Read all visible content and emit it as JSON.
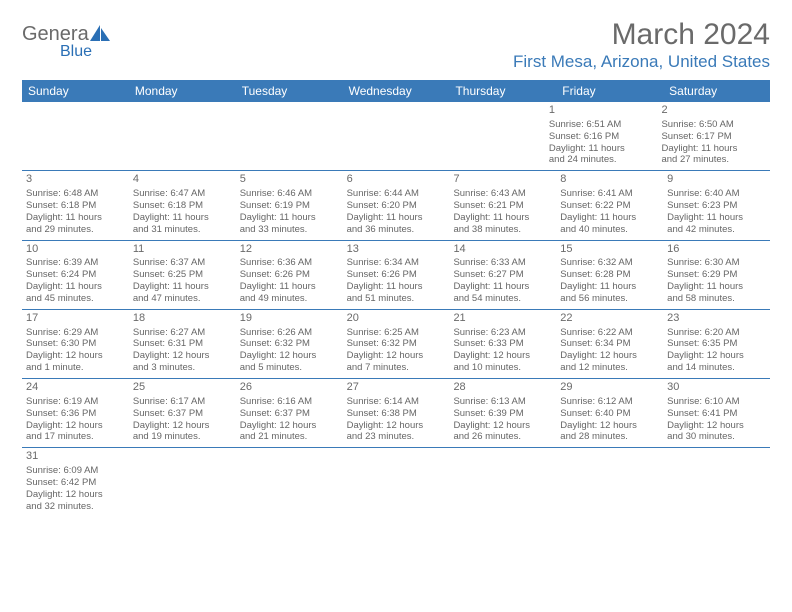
{
  "brand": {
    "name_gray": "Genera",
    "name_blue": "Blue"
  },
  "title": "March 2024",
  "location": "First Mesa, Arizona, United States",
  "colors": {
    "header_bg": "#3a7ab8",
    "header_text": "#ffffff",
    "text": "#666666",
    "title_text": "#6a6a6a",
    "location_text": "#3a7ab8",
    "divider": "#3a7ab8",
    "background": "#ffffff"
  },
  "weekdays": [
    "Sunday",
    "Monday",
    "Tuesday",
    "Wednesday",
    "Thursday",
    "Friday",
    "Saturday"
  ],
  "weeks": [
    [
      null,
      null,
      null,
      null,
      null,
      {
        "n": "1",
        "sr": "Sunrise: 6:51 AM",
        "ss": "Sunset: 6:16 PM",
        "d1": "Daylight: 11 hours",
        "d2": "and 24 minutes."
      },
      {
        "n": "2",
        "sr": "Sunrise: 6:50 AM",
        "ss": "Sunset: 6:17 PM",
        "d1": "Daylight: 11 hours",
        "d2": "and 27 minutes."
      }
    ],
    [
      {
        "n": "3",
        "sr": "Sunrise: 6:48 AM",
        "ss": "Sunset: 6:18 PM",
        "d1": "Daylight: 11 hours",
        "d2": "and 29 minutes."
      },
      {
        "n": "4",
        "sr": "Sunrise: 6:47 AM",
        "ss": "Sunset: 6:18 PM",
        "d1": "Daylight: 11 hours",
        "d2": "and 31 minutes."
      },
      {
        "n": "5",
        "sr": "Sunrise: 6:46 AM",
        "ss": "Sunset: 6:19 PM",
        "d1": "Daylight: 11 hours",
        "d2": "and 33 minutes."
      },
      {
        "n": "6",
        "sr": "Sunrise: 6:44 AM",
        "ss": "Sunset: 6:20 PM",
        "d1": "Daylight: 11 hours",
        "d2": "and 36 minutes."
      },
      {
        "n": "7",
        "sr": "Sunrise: 6:43 AM",
        "ss": "Sunset: 6:21 PM",
        "d1": "Daylight: 11 hours",
        "d2": "and 38 minutes."
      },
      {
        "n": "8",
        "sr": "Sunrise: 6:41 AM",
        "ss": "Sunset: 6:22 PM",
        "d1": "Daylight: 11 hours",
        "d2": "and 40 minutes."
      },
      {
        "n": "9",
        "sr": "Sunrise: 6:40 AM",
        "ss": "Sunset: 6:23 PM",
        "d1": "Daylight: 11 hours",
        "d2": "and 42 minutes."
      }
    ],
    [
      {
        "n": "10",
        "sr": "Sunrise: 6:39 AM",
        "ss": "Sunset: 6:24 PM",
        "d1": "Daylight: 11 hours",
        "d2": "and 45 minutes."
      },
      {
        "n": "11",
        "sr": "Sunrise: 6:37 AM",
        "ss": "Sunset: 6:25 PM",
        "d1": "Daylight: 11 hours",
        "d2": "and 47 minutes."
      },
      {
        "n": "12",
        "sr": "Sunrise: 6:36 AM",
        "ss": "Sunset: 6:26 PM",
        "d1": "Daylight: 11 hours",
        "d2": "and 49 minutes."
      },
      {
        "n": "13",
        "sr": "Sunrise: 6:34 AM",
        "ss": "Sunset: 6:26 PM",
        "d1": "Daylight: 11 hours",
        "d2": "and 51 minutes."
      },
      {
        "n": "14",
        "sr": "Sunrise: 6:33 AM",
        "ss": "Sunset: 6:27 PM",
        "d1": "Daylight: 11 hours",
        "d2": "and 54 minutes."
      },
      {
        "n": "15",
        "sr": "Sunrise: 6:32 AM",
        "ss": "Sunset: 6:28 PM",
        "d1": "Daylight: 11 hours",
        "d2": "and 56 minutes."
      },
      {
        "n": "16",
        "sr": "Sunrise: 6:30 AM",
        "ss": "Sunset: 6:29 PM",
        "d1": "Daylight: 11 hours",
        "d2": "and 58 minutes."
      }
    ],
    [
      {
        "n": "17",
        "sr": "Sunrise: 6:29 AM",
        "ss": "Sunset: 6:30 PM",
        "d1": "Daylight: 12 hours",
        "d2": "and 1 minute."
      },
      {
        "n": "18",
        "sr": "Sunrise: 6:27 AM",
        "ss": "Sunset: 6:31 PM",
        "d1": "Daylight: 12 hours",
        "d2": "and 3 minutes."
      },
      {
        "n": "19",
        "sr": "Sunrise: 6:26 AM",
        "ss": "Sunset: 6:32 PM",
        "d1": "Daylight: 12 hours",
        "d2": "and 5 minutes."
      },
      {
        "n": "20",
        "sr": "Sunrise: 6:25 AM",
        "ss": "Sunset: 6:32 PM",
        "d1": "Daylight: 12 hours",
        "d2": "and 7 minutes."
      },
      {
        "n": "21",
        "sr": "Sunrise: 6:23 AM",
        "ss": "Sunset: 6:33 PM",
        "d1": "Daylight: 12 hours",
        "d2": "and 10 minutes."
      },
      {
        "n": "22",
        "sr": "Sunrise: 6:22 AM",
        "ss": "Sunset: 6:34 PM",
        "d1": "Daylight: 12 hours",
        "d2": "and 12 minutes."
      },
      {
        "n": "23",
        "sr": "Sunrise: 6:20 AM",
        "ss": "Sunset: 6:35 PM",
        "d1": "Daylight: 12 hours",
        "d2": "and 14 minutes."
      }
    ],
    [
      {
        "n": "24",
        "sr": "Sunrise: 6:19 AM",
        "ss": "Sunset: 6:36 PM",
        "d1": "Daylight: 12 hours",
        "d2": "and 17 minutes."
      },
      {
        "n": "25",
        "sr": "Sunrise: 6:17 AM",
        "ss": "Sunset: 6:37 PM",
        "d1": "Daylight: 12 hours",
        "d2": "and 19 minutes."
      },
      {
        "n": "26",
        "sr": "Sunrise: 6:16 AM",
        "ss": "Sunset: 6:37 PM",
        "d1": "Daylight: 12 hours",
        "d2": "and 21 minutes."
      },
      {
        "n": "27",
        "sr": "Sunrise: 6:14 AM",
        "ss": "Sunset: 6:38 PM",
        "d1": "Daylight: 12 hours",
        "d2": "and 23 minutes."
      },
      {
        "n": "28",
        "sr": "Sunrise: 6:13 AM",
        "ss": "Sunset: 6:39 PM",
        "d1": "Daylight: 12 hours",
        "d2": "and 26 minutes."
      },
      {
        "n": "29",
        "sr": "Sunrise: 6:12 AM",
        "ss": "Sunset: 6:40 PM",
        "d1": "Daylight: 12 hours",
        "d2": "and 28 minutes."
      },
      {
        "n": "30",
        "sr": "Sunrise: 6:10 AM",
        "ss": "Sunset: 6:41 PM",
        "d1": "Daylight: 12 hours",
        "d2": "and 30 minutes."
      }
    ],
    [
      {
        "n": "31",
        "sr": "Sunrise: 6:09 AM",
        "ss": "Sunset: 6:42 PM",
        "d1": "Daylight: 12 hours",
        "d2": "and 32 minutes."
      },
      null,
      null,
      null,
      null,
      null,
      null
    ]
  ]
}
